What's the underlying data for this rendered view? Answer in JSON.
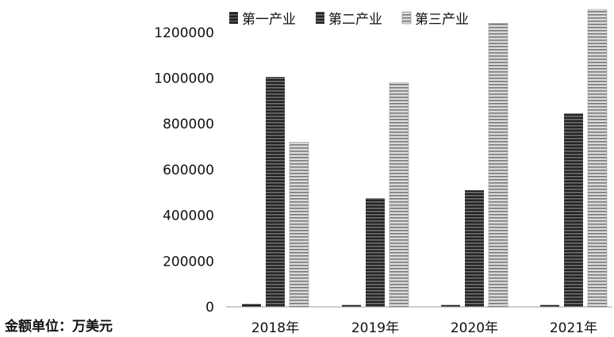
{
  "chart_data": {
    "type": "bar",
    "categories": [
      "2018年",
      "2019年",
      "2020年",
      "2021年"
    ],
    "series": [
      {
        "name": "第一产业",
        "values": [
          12000,
          8000,
          8000,
          8000
        ]
      },
      {
        "name": "第二产业",
        "values": [
          1005000,
          475000,
          510000,
          845000
        ]
      },
      {
        "name": "第三产业",
        "values": [
          720000,
          980000,
          1240000,
          1300000
        ]
      }
    ],
    "ylim": [
      0,
      1300000
    ],
    "yticks": [
      0,
      200000,
      400000,
      600000,
      800000,
      1000000,
      1200000
    ],
    "legend_position": "top",
    "grid": false,
    "unit_note": "金额单位：万美元",
    "colors": {
      "第一产业": "#3a3a3a",
      "第二产业": "#2f2f2f",
      "第三产业": "#8c8c8c"
    }
  }
}
